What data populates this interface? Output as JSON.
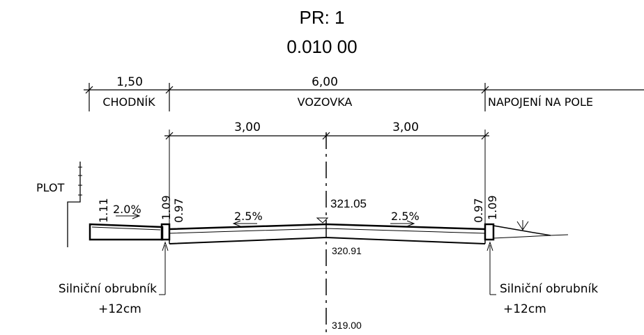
{
  "header": {
    "profile": "PR: 1",
    "station": "0.010 00"
  },
  "dimensions": {
    "sidewalk_width": "1,50",
    "sidewalk_label": "CHODNÍK",
    "road_width": "6,00",
    "road_label": "VOZOVKA",
    "connection_label": "NAPOJENÍ NA POLE",
    "left_lane_width": "3,00",
    "right_lane_width": "3,00"
  },
  "labels": {
    "fence": "PLOT",
    "left_fence_height": "1.11",
    "left_curb_height_top": "1.09",
    "left_curb_height_bottom": "0.97",
    "right_curb_height_top": "1.09",
    "right_curb_height_bottom": "0.97",
    "sidewalk_slope": "2.0%",
    "left_lane_slope": "2.5%",
    "right_lane_slope": "2.5%",
    "crown_elevation": "321.05",
    "subgrade_elevation": "320.91",
    "datum_elevation": "319.00"
  },
  "annotations": {
    "left_curb_name": "Silniční obrubník",
    "left_curb_offset": "+12cm",
    "right_curb_name": "Silniční obrubník",
    "right_curb_offset": "+12cm"
  }
}
